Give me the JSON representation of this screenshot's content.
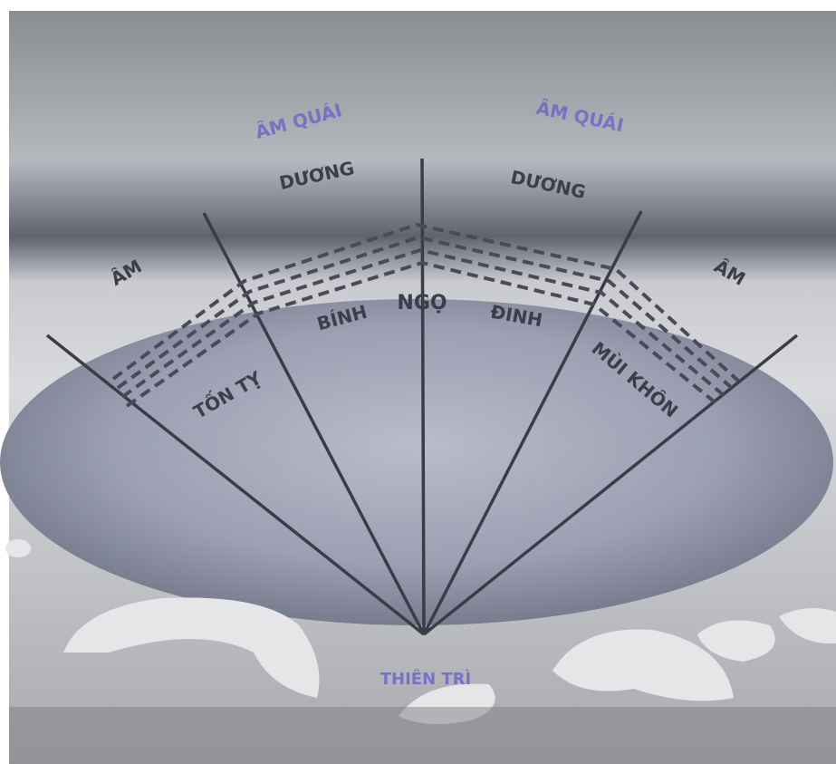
{
  "labels": {
    "am_quai_left": "ÂM QUÁI",
    "am_quai_right": "ÂM QUÁI",
    "duong_left": "DƯƠNG",
    "duong_right": "DƯƠNG",
    "am_left": "ÂM",
    "am_right": "ÂM",
    "binh": "BÍNH",
    "ngo": "NGỌ",
    "dinh": "ĐINH",
    "ton_ty": "TỐN TỴ",
    "mui_khon": "MÙI KHÔN",
    "thien_tri": "THIÊN TRÌ"
  }
}
